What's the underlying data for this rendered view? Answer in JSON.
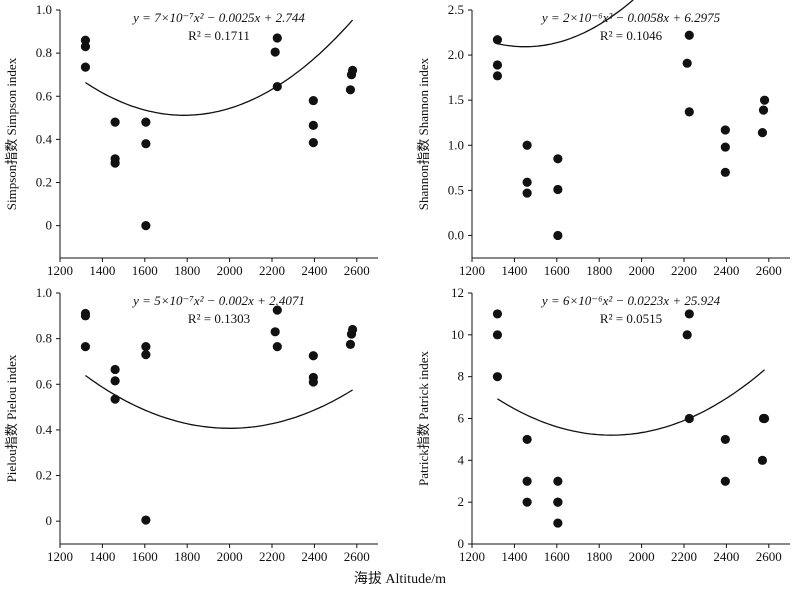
{
  "figure": {
    "x_axis_label": "海拔 Altitude/m"
  },
  "chart_data": [
    {
      "type": "scatter",
      "ylabel": "Simpson指数 Simpson index",
      "equation": "y = 7×10⁻⁷x² − 0.0025x + 2.744",
      "r2_text": "R² = 0.1711",
      "xlim": [
        1200,
        2700
      ],
      "ylim": [
        -0.15,
        1.0
      ],
      "xticks": [
        1200,
        1400,
        1600,
        1800,
        2000,
        2200,
        2400,
        2600
      ],
      "yticks": [
        0,
        0.2,
        0.4,
        0.6,
        0.8,
        1.0
      ],
      "ytick_labels": [
        "0",
        "0.2",
        "0.4",
        "0.6",
        "0.8",
        "1.0"
      ],
      "points": {
        "x": [
          1320,
          1320,
          1320,
          1460,
          1460,
          1460,
          1605,
          1605,
          1605,
          2215,
          2225,
          2225,
          2395,
          2395,
          2395,
          2570,
          2575,
          2580
        ],
        "y": [
          0.86,
          0.83,
          0.735,
          0.48,
          0.31,
          0.29,
          0.48,
          0.38,
          0.0,
          0.805,
          0.87,
          0.645,
          0.58,
          0.465,
          0.385,
          0.63,
          0.7,
          0.72
        ]
      },
      "fit": {
        "a": 7e-07,
        "b": -0.0025,
        "c": 2.744,
        "x_range": [
          1320,
          2580
        ]
      }
    },
    {
      "type": "scatter",
      "ylabel": "Shannon指数 Shannon index",
      "equation": "y = 2×10⁻⁶x² − 0.0058x + 6.2975",
      "r2_text": "R² = 0.1046",
      "xlim": [
        1200,
        2700
      ],
      "ylim": [
        -0.25,
        2.5
      ],
      "xticks": [
        1200,
        1400,
        1600,
        1800,
        2000,
        2200,
        2400,
        2600
      ],
      "yticks": [
        0,
        0.5,
        1.0,
        1.5,
        2.0,
        2.5
      ],
      "ytick_labels": [
        "0.0",
        "0.5",
        "1.0",
        "1.5",
        "2.0",
        "2.5"
      ],
      "points": {
        "x": [
          1320,
          1320,
          1320,
          1460,
          1460,
          1460,
          1605,
          1605,
          1605,
          2215,
          2225,
          2225,
          2395,
          2395,
          2395,
          2570,
          2575,
          2580
        ],
        "y": [
          2.17,
          1.89,
          1.77,
          1.0,
          0.59,
          0.47,
          0.85,
          0.51,
          0.0,
          1.91,
          2.22,
          1.37,
          1.17,
          0.98,
          0.7,
          1.14,
          1.39,
          1.5
        ]
      },
      "fit": {
        "a": 2e-06,
        "b": -0.0058,
        "c": 6.2975,
        "x_range": [
          1320,
          2580
        ]
      }
    },
    {
      "type": "scatter",
      "ylabel": "Pielou指数 Pielou index",
      "equation": "y = 5×10⁻⁷x² − 0.002x + 2.4071",
      "r2_text": "R² = 0.1303",
      "xlim": [
        1200,
        2700
      ],
      "ylim": [
        -0.1,
        1.0
      ],
      "xticks": [
        1200,
        1400,
        1600,
        1800,
        2000,
        2200,
        2400,
        2600
      ],
      "yticks": [
        0,
        0.2,
        0.4,
        0.6,
        0.8,
        1.0
      ],
      "ytick_labels": [
        "0",
        "0.2",
        "0.4",
        "0.6",
        "0.8",
        "1.0"
      ],
      "points": {
        "x": [
          1320,
          1320,
          1320,
          1460,
          1460,
          1460,
          1605,
          1605,
          1605,
          2215,
          2225,
          2225,
          2395,
          2395,
          2395,
          2570,
          2575,
          2580
        ],
        "y": [
          0.91,
          0.9,
          0.765,
          0.665,
          0.615,
          0.535,
          0.765,
          0.73,
          0.005,
          0.83,
          0.925,
          0.765,
          0.725,
          0.63,
          0.61,
          0.775,
          0.82,
          0.84
        ]
      },
      "fit": {
        "a": 5e-07,
        "b": -0.002,
        "c": 2.4071,
        "x_range": [
          1320,
          2580
        ]
      }
    },
    {
      "type": "scatter",
      "ylabel": "Patrick指数 Patrick index",
      "equation": "y = 6×10⁻⁶x² − 0.0223x + 25.924",
      "r2_text": "R² = 0.0515",
      "xlim": [
        1200,
        2700
      ],
      "ylim": [
        0,
        12
      ],
      "xticks": [
        1200,
        1400,
        1600,
        1800,
        2000,
        2200,
        2400,
        2600
      ],
      "yticks": [
        0,
        2,
        4,
        6,
        8,
        10,
        12
      ],
      "ytick_labels": [
        "0",
        "2",
        "4",
        "6",
        "8",
        "10",
        "12"
      ],
      "points": {
        "x": [
          1320,
          1320,
          1320,
          1460,
          1460,
          1460,
          1605,
          1605,
          1605,
          1605,
          2215,
          2225,
          2225,
          2395,
          2395,
          2570,
          2575,
          2580
        ],
        "y": [
          11,
          10,
          8,
          5,
          3,
          2,
          3,
          2,
          1,
          2,
          10,
          11,
          6,
          5,
          3,
          4,
          6,
          6
        ]
      },
      "fit": {
        "a": 6e-06,
        "b": -0.0223,
        "c": 25.924,
        "x_range": [
          1320,
          2580
        ]
      }
    }
  ]
}
